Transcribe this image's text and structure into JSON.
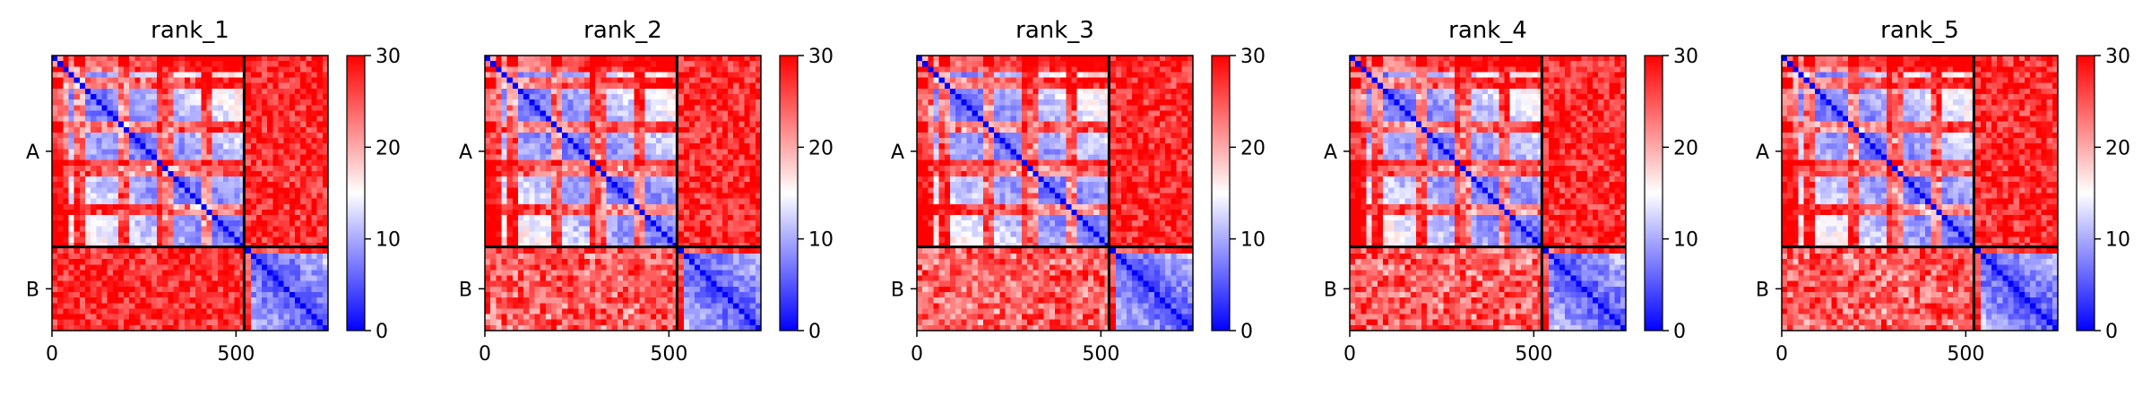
{
  "chart_data": {
    "type": "heatmap",
    "colorscale": {
      "name": "bwr",
      "min": 0,
      "max": 30,
      "ticks": [
        0,
        10,
        20,
        30
      ],
      "colors": [
        "#0000ff",
        "#ffffff",
        "#ff0000"
      ]
    },
    "x_ticks": [
      0,
      500
    ],
    "x_range": [
      0,
      750
    ],
    "y_tick_labels": [
      "A",
      "B"
    ],
    "chain_boundary": 522,
    "panels": [
      {
        "title": "rank_1"
      },
      {
        "title": "rank_2"
      },
      {
        "title": "rank_3"
      },
      {
        "title": "rank_4"
      },
      {
        "title": "rank_5"
      }
    ]
  }
}
